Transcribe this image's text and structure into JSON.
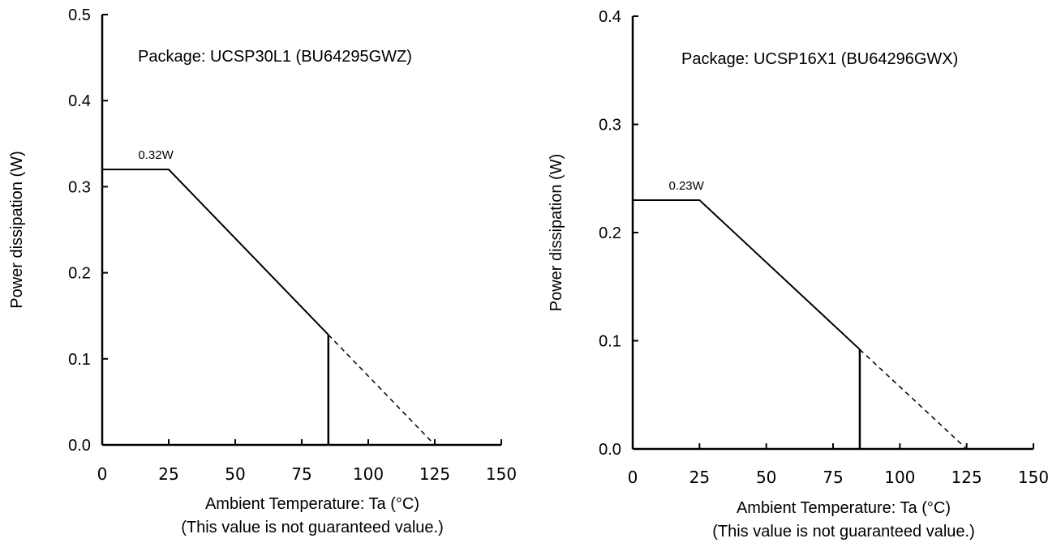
{
  "chart_data": [
    {
      "type": "line",
      "annotation": "Package: UCSP30L1 (BU64295GWZ)",
      "xlabel": "Ambient Temperature: Ta (°C)",
      "xlabel_note": "(This value is not guaranteed value.)",
      "ylabel": "Power dissipation (W)",
      "xlim": [
        0,
        150
      ],
      "ylim": [
        0,
        0.5
      ],
      "x_ticks": [
        "0",
        "25",
        "50",
        "75",
        "100",
        "125",
        "150"
      ],
      "y_ticks": [
        "0.0",
        "0.1",
        "0.2",
        "0.3",
        "0.4",
        "0.5"
      ],
      "series": [
        {
          "style": "solid",
          "x": [
            0,
            25,
            85
          ],
          "y": [
            0.32,
            0.32,
            0.128
          ]
        },
        {
          "style": "dashed",
          "x": [
            85,
            125
          ],
          "y": [
            0.128,
            0
          ]
        }
      ],
      "marker_line": {
        "x": 85,
        "y": 0.128
      },
      "value_label": {
        "text": "0.32W",
        "x": 5,
        "y": 0.32
      }
    },
    {
      "type": "line",
      "annotation": "Package: UCSP16X1 (BU64296GWX)",
      "xlabel": "Ambient Temperature: Ta (°C)",
      "xlabel_note": "(This value is not guaranteed value.)",
      "ylabel": "Power dissipation (W)",
      "xlim": [
        0,
        150
      ],
      "ylim": [
        0,
        0.4
      ],
      "x_ticks": [
        "0",
        "25",
        "50",
        "75",
        "100",
        "125",
        "150"
      ],
      "y_ticks": [
        "0.0",
        "0.1",
        "0.2",
        "0.3",
        "0.4"
      ],
      "series": [
        {
          "style": "solid",
          "x": [
            0,
            25,
            85
          ],
          "y": [
            0.23,
            0.23,
            0.092
          ]
        },
        {
          "style": "dashed",
          "x": [
            85,
            125
          ],
          "y": [
            0.092,
            0
          ]
        }
      ],
      "marker_line": {
        "x": 85,
        "y": 0.092
      },
      "value_label": {
        "text": "0.23W",
        "x": 5,
        "y": 0.23
      }
    }
  ]
}
